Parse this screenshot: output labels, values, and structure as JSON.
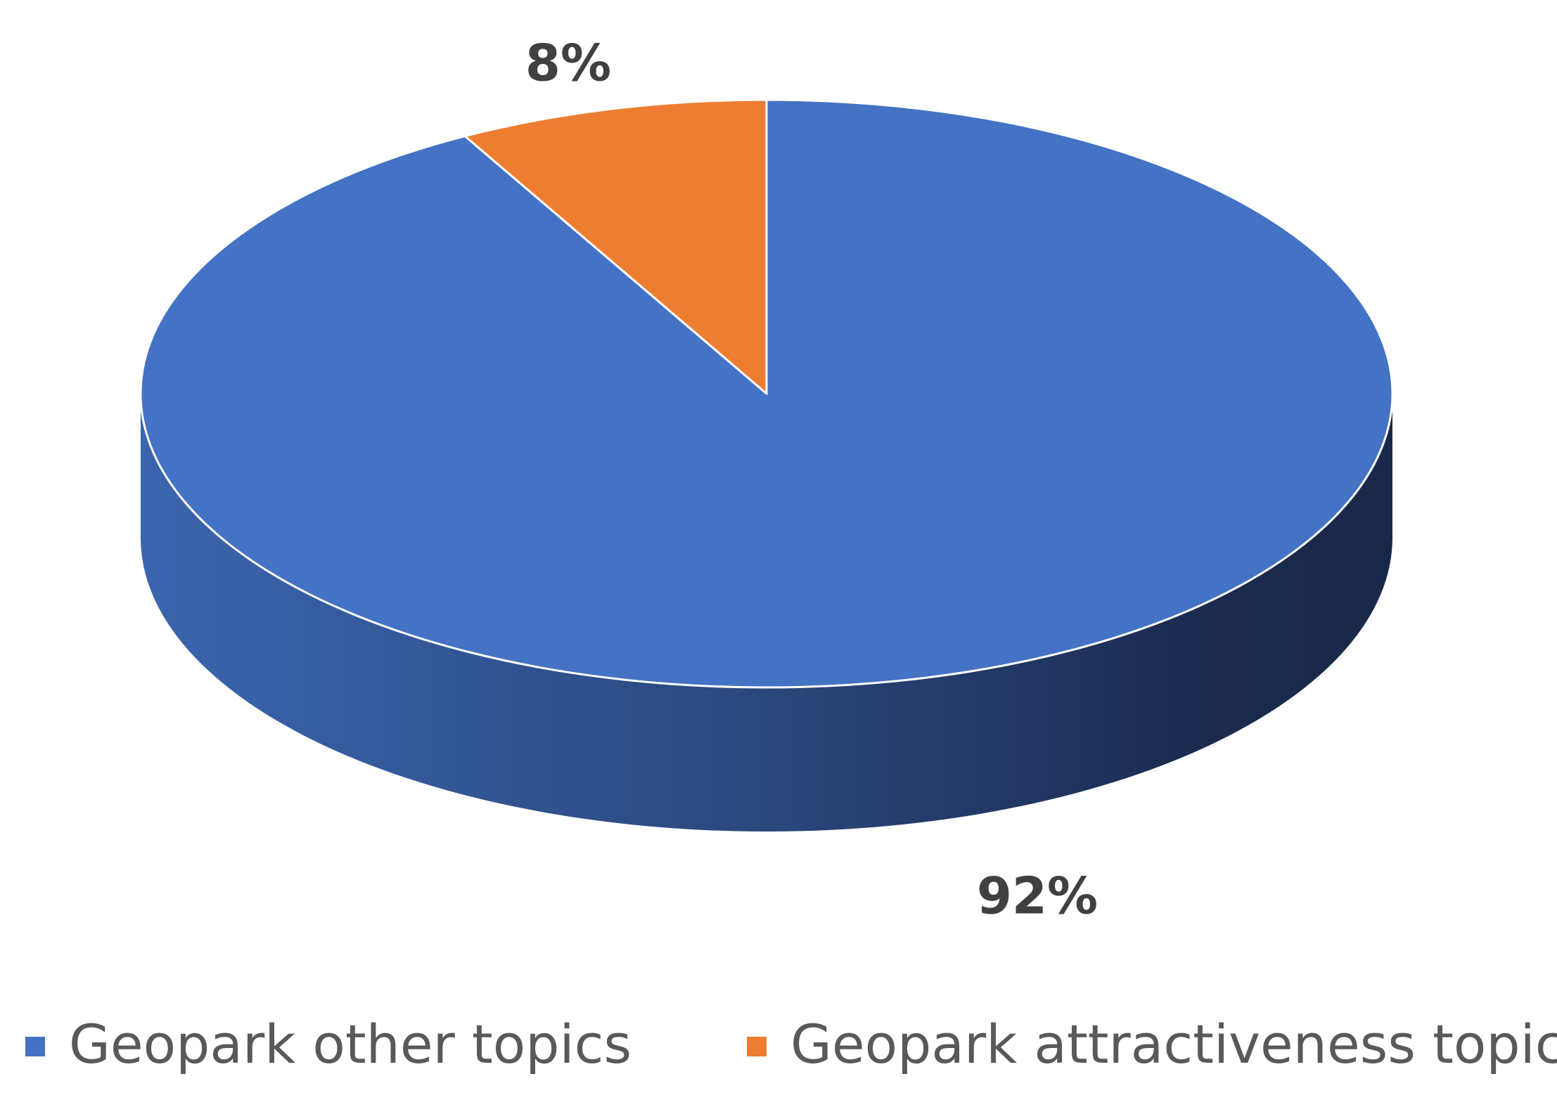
{
  "chart_data": {
    "type": "pie",
    "variant": "3d",
    "categories": [
      "Geopark other topics",
      "Geopark attractiveness topic"
    ],
    "values": [
      92,
      8
    ],
    "unit": "%",
    "data_labels": [
      "92%",
      "8%"
    ],
    "colors": [
      "#4472C4",
      "#ED7D31"
    ],
    "side_colors": [
      "#2F4F8A",
      "#1A2A4D"
    ],
    "legend_position": "bottom",
    "start_angle_deg": 0,
    "direction": "clockwise"
  }
}
